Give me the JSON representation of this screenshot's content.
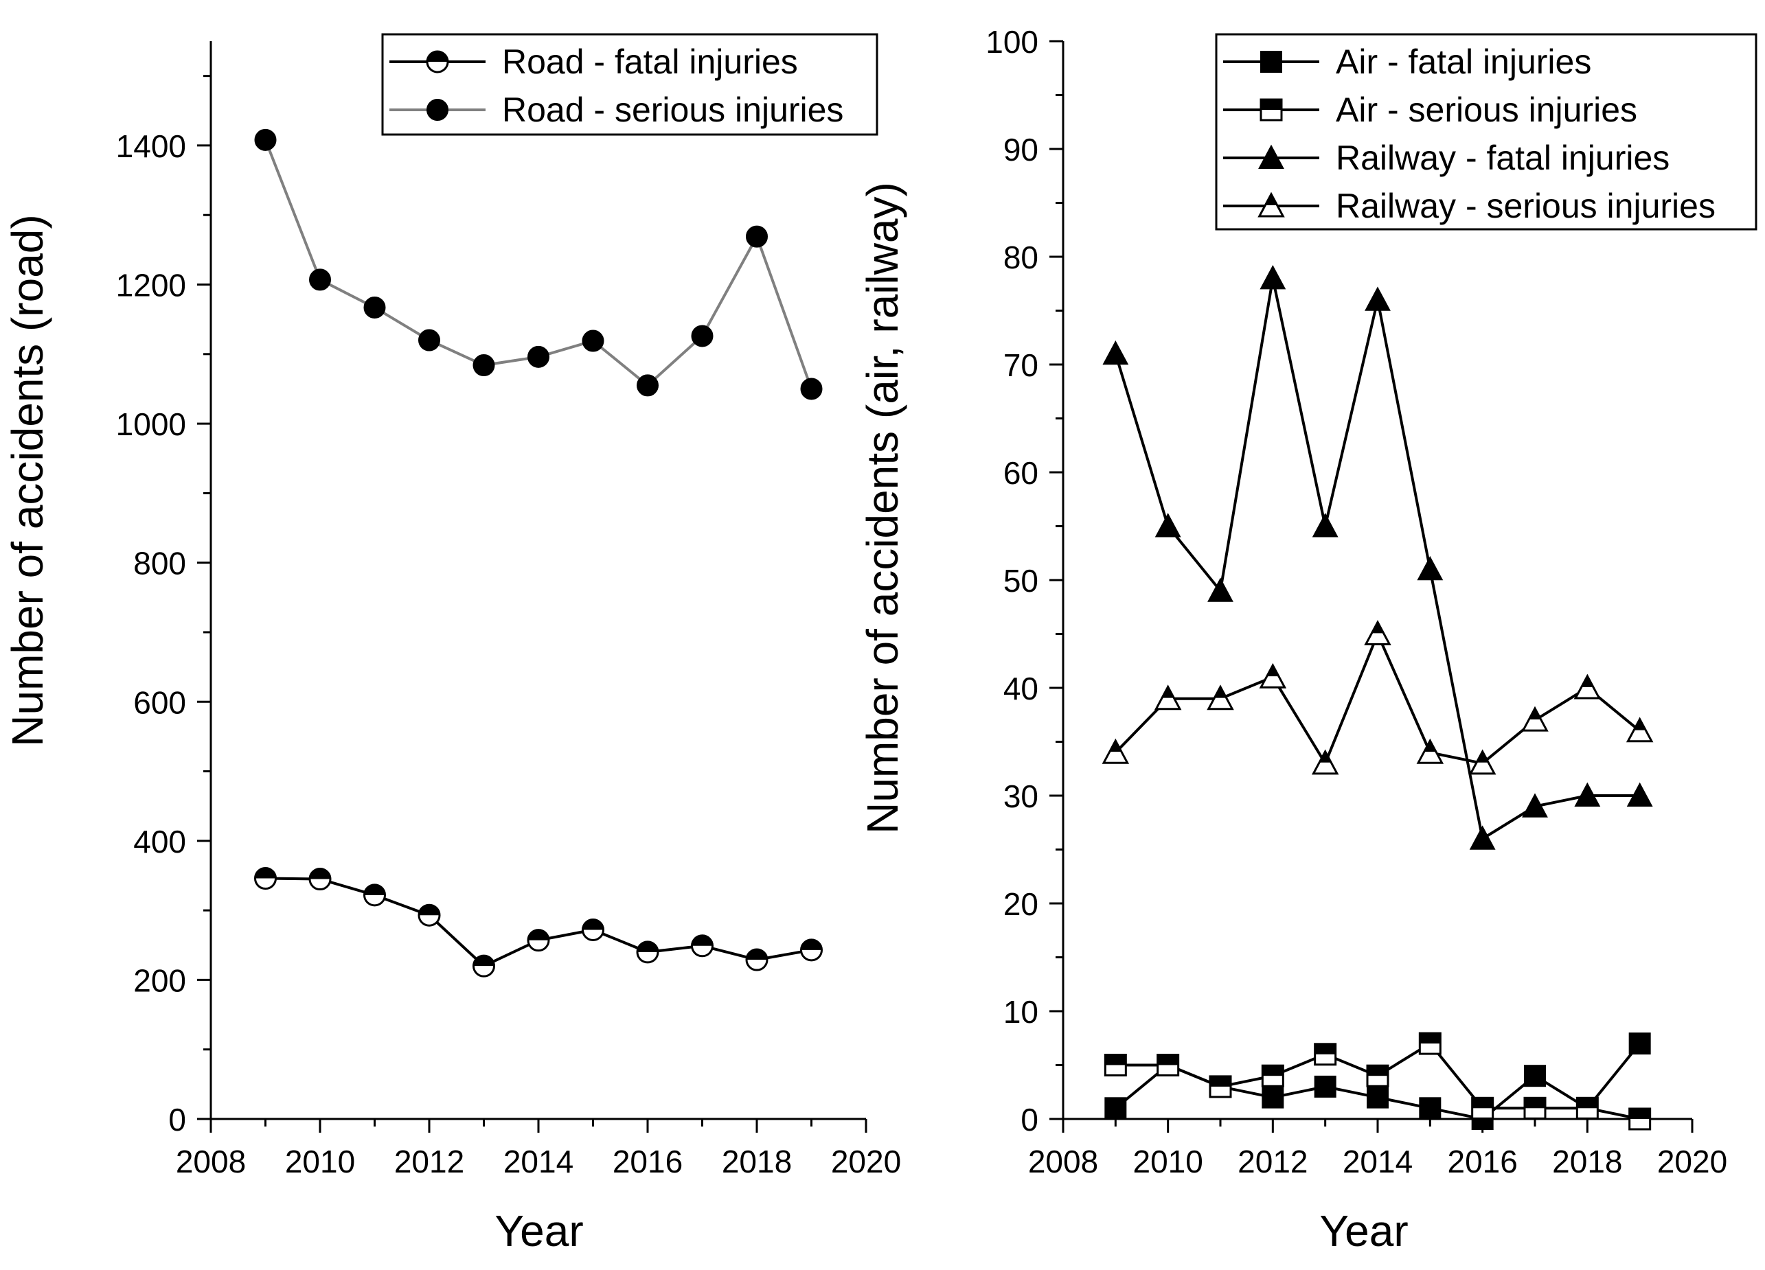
{
  "chart_data": [
    {
      "type": "line",
      "xlabel": "Year",
      "ylabel": "Number of accidents (road)",
      "xlim": [
        2008,
        2020
      ],
      "ylim": [
        0,
        1550
      ],
      "xticks": [
        2008,
        2010,
        2012,
        2014,
        2016,
        2018,
        2020
      ],
      "yticks": [
        0,
        200,
        400,
        600,
        800,
        1000,
        1200,
        1400
      ],
      "legend_position": "top-right",
      "x": [
        2009,
        2010,
        2011,
        2012,
        2013,
        2014,
        2015,
        2016,
        2017,
        2018,
        2019
      ],
      "series": [
        {
          "name": "Road - fatal injuries",
          "marker": "half-circle",
          "color": "#000000",
          "values": [
            346,
            345,
            322,
            293,
            220,
            257,
            272,
            240,
            249,
            229,
            243
          ]
        },
        {
          "name": "Road - serious injuries",
          "marker": "filled-circle",
          "color": "#808080",
          "values": [
            1408,
            1207,
            1167,
            1120,
            1084,
            1096,
            1119,
            1055,
            1126,
            1269,
            1050
          ]
        }
      ]
    },
    {
      "type": "line",
      "xlabel": "Year",
      "ylabel": "Number of accidents (air, railway)",
      "xlim": [
        2008,
        2020
      ],
      "ylim": [
        0,
        100
      ],
      "xticks": [
        2008,
        2010,
        2012,
        2014,
        2016,
        2018,
        2020
      ],
      "yticks": [
        0,
        10,
        20,
        30,
        40,
        50,
        60,
        70,
        80,
        90,
        100
      ],
      "legend_position": "top-right",
      "x": [
        2009,
        2010,
        2011,
        2012,
        2013,
        2014,
        2015,
        2016,
        2017,
        2018,
        2019
      ],
      "series": [
        {
          "name": "Air - fatal injuries",
          "marker": "filled-square",
          "color": "#000000",
          "values": [
            1,
            5,
            3,
            2,
            3,
            2,
            1,
            0,
            4,
            1,
            7
          ]
        },
        {
          "name": "Air - serious injuries",
          "marker": "half-square",
          "color": "#000000",
          "values": [
            5,
            5,
            3,
            4,
            6,
            4,
            7,
            1,
            1,
            1,
            0
          ]
        },
        {
          "name": "Railway - fatal injuries",
          "marker": "filled-triangle",
          "color": "#000000",
          "values": [
            71,
            55,
            49,
            78,
            55,
            76,
            51,
            26,
            29,
            30,
            30
          ]
        },
        {
          "name": "Railway - serious injuries",
          "marker": "half-triangle",
          "color": "#000000",
          "values": [
            34,
            39,
            39,
            41,
            33,
            45,
            34,
            33,
            37,
            40,
            36
          ]
        }
      ]
    }
  ]
}
